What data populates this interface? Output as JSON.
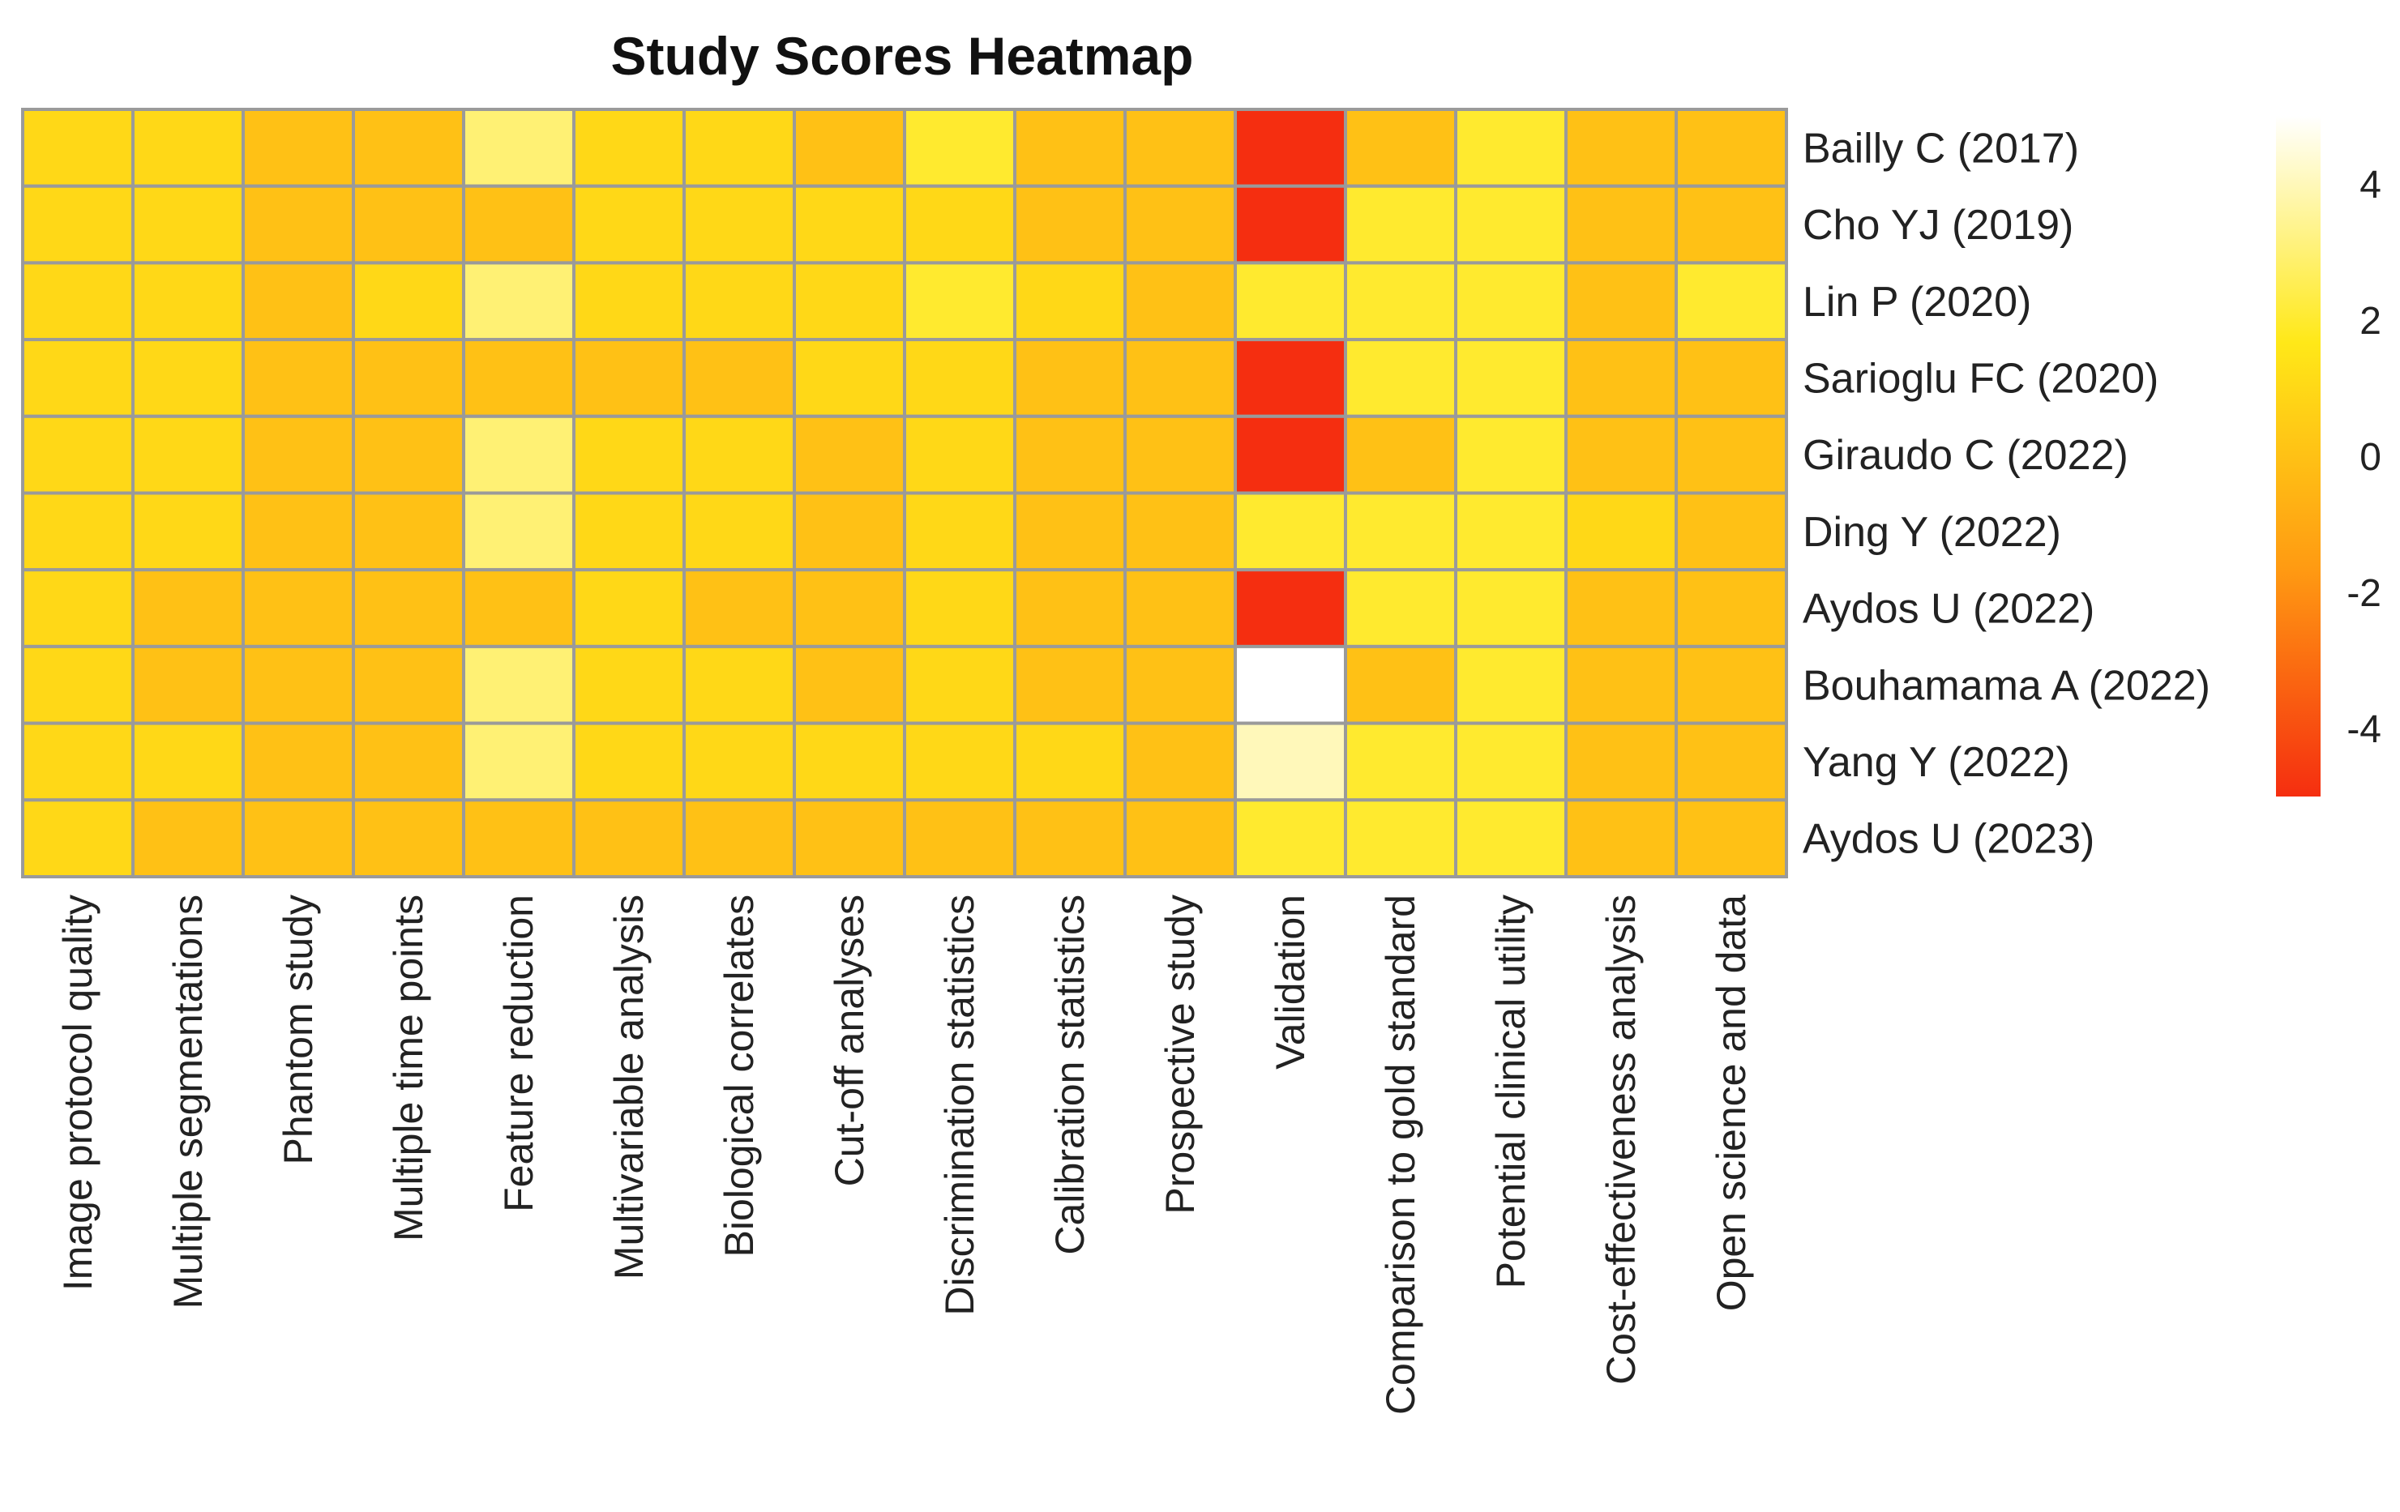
{
  "chart_data": {
    "type": "heatmap",
    "title": "Study Scores Heatmap",
    "rows": [
      "Bailly C (2017)",
      "Cho YJ (2019)",
      "Lin P (2020)",
      "Sarioglu FC (2020)",
      "Giraudo C (2022)",
      "Ding Y (2022)",
      "Aydos U (2022)",
      "Bouhamama A (2022)",
      "Yang Y (2022)",
      "Aydos U (2023)"
    ],
    "columns": [
      "Image protocol quality",
      "Multiple segmentations",
      "Phantom study",
      "Multiple time points",
      "Feature reduction",
      "Multivariable analysis",
      "Biological correlates",
      "Cut-off analyses",
      "Discrimination statistics",
      "Calibration statistics",
      "Prospective study",
      "Validation",
      "Comparison to gold standard",
      "Potential clinical utility",
      "Cost-effectiveness analysis",
      "Open science and data"
    ],
    "values": [
      [
        1,
        1,
        0,
        0,
        3,
        1,
        1,
        0,
        2,
        0,
        0,
        -5,
        0,
        2,
        0,
        0
      ],
      [
        1,
        1,
        0,
        0,
        0,
        1,
        1,
        1,
        1,
        0,
        0,
        -5,
        2,
        2,
        0,
        0
      ],
      [
        1,
        1,
        0,
        1,
        3,
        1,
        1,
        1,
        2,
        1,
        0,
        2,
        2,
        2,
        0,
        2
      ],
      [
        1,
        1,
        0,
        0,
        0,
        0,
        0,
        1,
        1,
        0,
        0,
        -5,
        2,
        2,
        0,
        0
      ],
      [
        1,
        1,
        0,
        0,
        3,
        1,
        1,
        0,
        1,
        0,
        0,
        -5,
        0,
        2,
        0,
        0
      ],
      [
        1,
        1,
        0,
        0,
        3,
        1,
        1,
        0,
        1,
        0,
        0,
        2,
        2,
        2,
        1,
        0
      ],
      [
        1,
        0,
        0,
        0,
        0,
        1,
        0,
        0,
        1,
        0,
        0,
        -5,
        2,
        2,
        0,
        0
      ],
      [
        1,
        0,
        0,
        0,
        3,
        1,
        1,
        0,
        1,
        0,
        0,
        5,
        0,
        2,
        0,
        0
      ],
      [
        1,
        1,
        0,
        0,
        3,
        1,
        1,
        1,
        1,
        1,
        0,
        4,
        2,
        2,
        0,
        0
      ],
      [
        1,
        0,
        0,
        0,
        0,
        0,
        0,
        0,
        0,
        0,
        0,
        2,
        2,
        2,
        0,
        0
      ]
    ],
    "color_scale": {
      "min": -5,
      "max": 5,
      "stops": [
        "#f52e10",
        "#ff9a12",
        "#ffe818",
        "#ffffff"
      ],
      "ticks": [
        4,
        2,
        0,
        -2,
        -4
      ]
    },
    "cell_border_color": "#9a9a9a"
  }
}
